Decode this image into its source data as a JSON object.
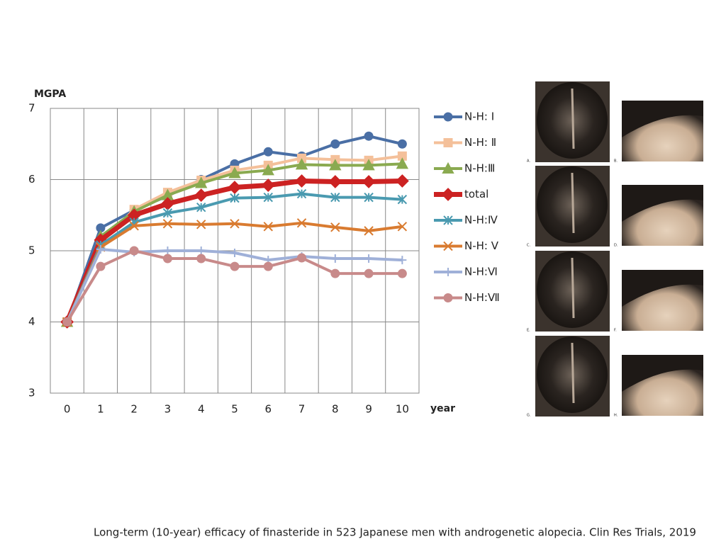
{
  "chart_data": {
    "type": "line",
    "y_label": "MGPA",
    "x_label": "year",
    "categories": [
      "0",
      "1",
      "2",
      "3",
      "4",
      "5",
      "6",
      "7",
      "8",
      "9",
      "10"
    ],
    "ylim": [
      3,
      7
    ],
    "yticks": [
      3,
      4,
      5,
      6,
      7
    ],
    "grid": true,
    "series": [
      {
        "name": "N-H: Ⅰ",
        "color": "#4a6fa5",
        "marker": "circle",
        "values": [
          4.0,
          5.32,
          5.57,
          5.77,
          6.0,
          6.22,
          6.39,
          6.33,
          6.5,
          6.61,
          6.5
        ]
      },
      {
        "name": "N-H: Ⅱ",
        "color": "#f4c09a",
        "marker": "square",
        "values": [
          4.0,
          5.1,
          5.58,
          5.82,
          5.99,
          6.13,
          6.2,
          6.3,
          6.28,
          6.27,
          6.33
        ]
      },
      {
        "name": "N-H:Ⅲ",
        "color": "#8aaa50",
        "marker": "triangle",
        "values": [
          4.0,
          5.2,
          5.55,
          5.78,
          5.95,
          6.09,
          6.13,
          6.21,
          6.2,
          6.2,
          6.22
        ]
      },
      {
        "name": "total",
        "color": "#cc2222",
        "marker": "diamond",
        "bold": true,
        "values": [
          4.0,
          5.15,
          5.5,
          5.66,
          5.78,
          5.89,
          5.92,
          5.98,
          5.97,
          5.97,
          5.98
        ]
      },
      {
        "name": "N-H:Ⅳ",
        "color": "#4a9ab0",
        "marker": "asterisk",
        "values": [
          4.0,
          5.08,
          5.4,
          5.53,
          5.61,
          5.74,
          5.75,
          5.8,
          5.75,
          5.75,
          5.72
        ]
      },
      {
        "name": "N-H: Ⅴ",
        "color": "#d97b30",
        "marker": "x",
        "values": [
          4.0,
          5.05,
          5.35,
          5.38,
          5.37,
          5.38,
          5.34,
          5.39,
          5.33,
          5.28,
          5.34
        ]
      },
      {
        "name": "N-H:Ⅵ",
        "color": "#9fb0d8",
        "marker": "plus",
        "values": [
          4.0,
          5.02,
          4.98,
          5.0,
          5.0,
          4.97,
          4.87,
          4.92,
          4.89,
          4.89,
          4.87
        ]
      },
      {
        "name": "N-H:Ⅶ",
        "color": "#c88a8a",
        "marker": "circle",
        "values": [
          4.0,
          4.78,
          5.0,
          4.89,
          4.89,
          4.78,
          4.78,
          4.9,
          4.68,
          4.68,
          4.68
        ]
      }
    ]
  },
  "photo_panel": {
    "labels": [
      "A.",
      "B.",
      "C.",
      "D.",
      "E.",
      "F.",
      "G.",
      "H."
    ]
  },
  "caption": "Long-term (10-year) efficacy of finasteride in 523 Japanese men with androgenetic alopecia. Clin Res Trials, 2019"
}
